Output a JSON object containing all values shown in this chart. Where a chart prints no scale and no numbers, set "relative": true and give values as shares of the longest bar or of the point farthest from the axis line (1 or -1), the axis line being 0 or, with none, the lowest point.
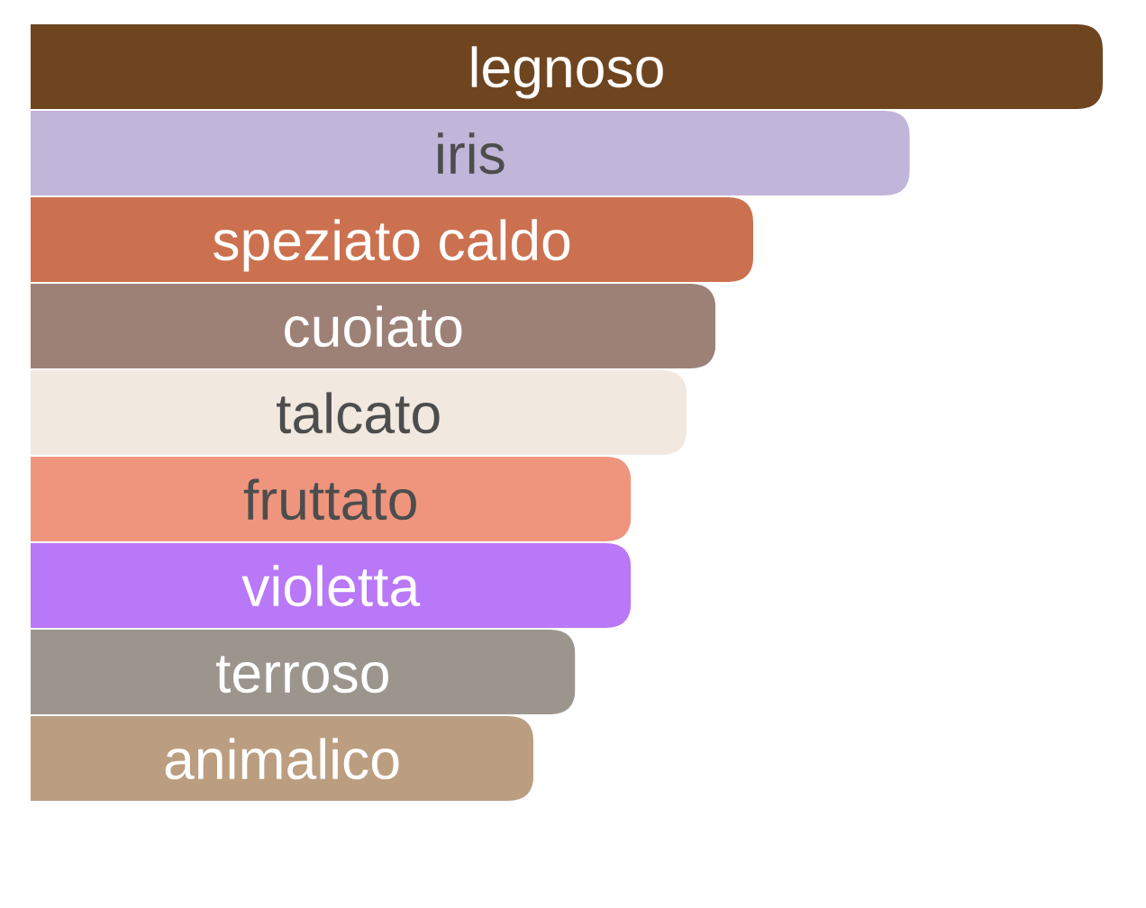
{
  "chart_data": {
    "type": "bar",
    "orientation": "horizontal",
    "relative": true,
    "tick_labels": "y",
    "categories": [
      "legnoso",
      "iris",
      "speziato caldo",
      "cuoiato",
      "talcato",
      "fruttato",
      "violetta",
      "terroso",
      "animalico"
    ],
    "values": [
      1,
      0.82,
      0.674,
      0.639,
      0.612,
      0.56,
      0.56,
      0.508,
      0.469
    ],
    "colors": [
      "#6f4520",
      "#c1b5da",
      "#cc7150",
      "#9d8177",
      "#f1e8df",
      "#ef957e",
      "#b878f8",
      "#9c958e",
      "#bb9d80"
    ]
  }
}
